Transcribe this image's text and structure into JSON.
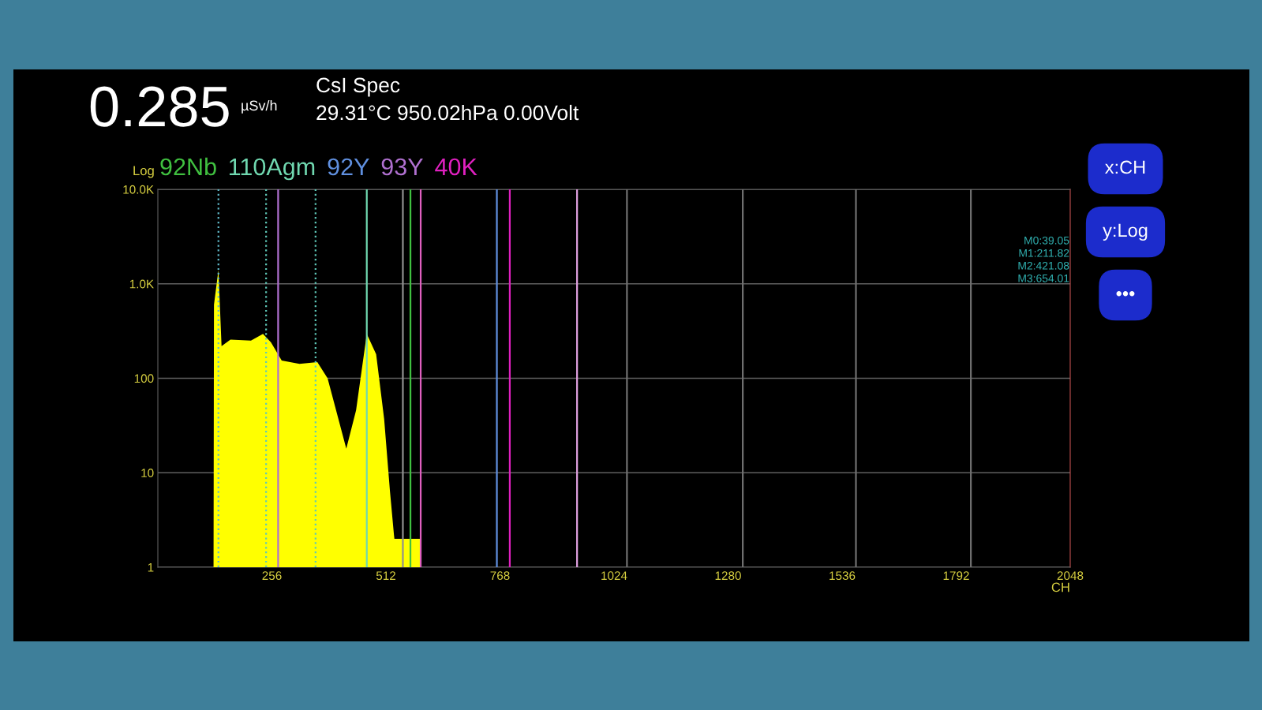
{
  "chart_data": {
    "type": "area",
    "title": "0.285",
    "subtitle": "CsI Spec",
    "ylabel": "Log",
    "xlabel": "CH",
    "annotations": [
      "µSv/h",
      "29.31°C 950.02hPa 0.00Volt",
      "M0:39.05",
      "M1:211.82",
      "M2:421.08",
      "M3:654.01",
      "x:CH",
      "y:Log",
      "•••"
    ],
    "series": [
      {
        "color": "#ffff00",
        "x": [
          125,
          126,
          136,
          143,
          163,
          209,
          236,
          254,
          278,
          318,
          358,
          381,
          423,
          445,
          469,
          490,
          508,
          521,
          530,
          531,
          590,
          591
        ],
        "values": [
          1,
          600,
          1400,
          219,
          256,
          250,
          295,
          240,
          154,
          142,
          148,
          100,
          18,
          46,
          295,
          180,
          37,
          6.4,
          2.2,
          2,
          2,
          1
        ]
      }
    ],
    "xlim": [
      0,
      2048
    ],
    "xticks": [
      256,
      512,
      768,
      1024,
      1280,
      1536,
      1792,
      2048
    ],
    "ylim": [
      1,
      10000
    ],
    "yticks": [
      1,
      10,
      100,
      {
        "value": 1000,
        "label": "1.0K"
      },
      {
        "value": 10000,
        "label": "10.0K"
      }
    ],
    "log": "y",
    "grid": "y",
    "ref_lines": [
      {
        "axis": "x",
        "value": 567,
        "color": "#40c040",
        "label": "92Nb"
      },
      {
        "axis": "x",
        "value": 469,
        "color": "#70d8b0",
        "label": "110Agm"
      },
      {
        "axis": "x",
        "value": 761,
        "color": "#6090e0",
        "label": "92Y"
      },
      {
        "axis": "x",
        "value": 270,
        "color": "#b070d0",
        "label": "93Y"
      },
      {
        "axis": "x",
        "value": 790,
        "color": "#e020c0",
        "label": "40K"
      },
      {
        "axis": "x",
        "value": 136,
        "color": "#5fb8c8",
        "line_style": "dotted"
      },
      {
        "axis": "x",
        "value": 243,
        "color": "#5fc8b8",
        "line_style": "dotted"
      },
      {
        "axis": "x",
        "value": 354,
        "color": "#5fc8b8",
        "line_style": "dotted"
      },
      {
        "axis": "x",
        "value": 550,
        "color": "#909090"
      },
      {
        "axis": "x",
        "value": 590,
        "color": "#e060c0"
      },
      {
        "axis": "x",
        "value": 941,
        "color": "#e0a0e0"
      },
      {
        "axis": "x",
        "value": 1053,
        "color": "#707070"
      },
      {
        "axis": "x",
        "value": 1313,
        "color": "#707070"
      },
      {
        "axis": "x",
        "value": 1567,
        "color": "#707070"
      },
      {
        "axis": "x",
        "value": 1825,
        "color": "#707070"
      }
    ]
  }
}
